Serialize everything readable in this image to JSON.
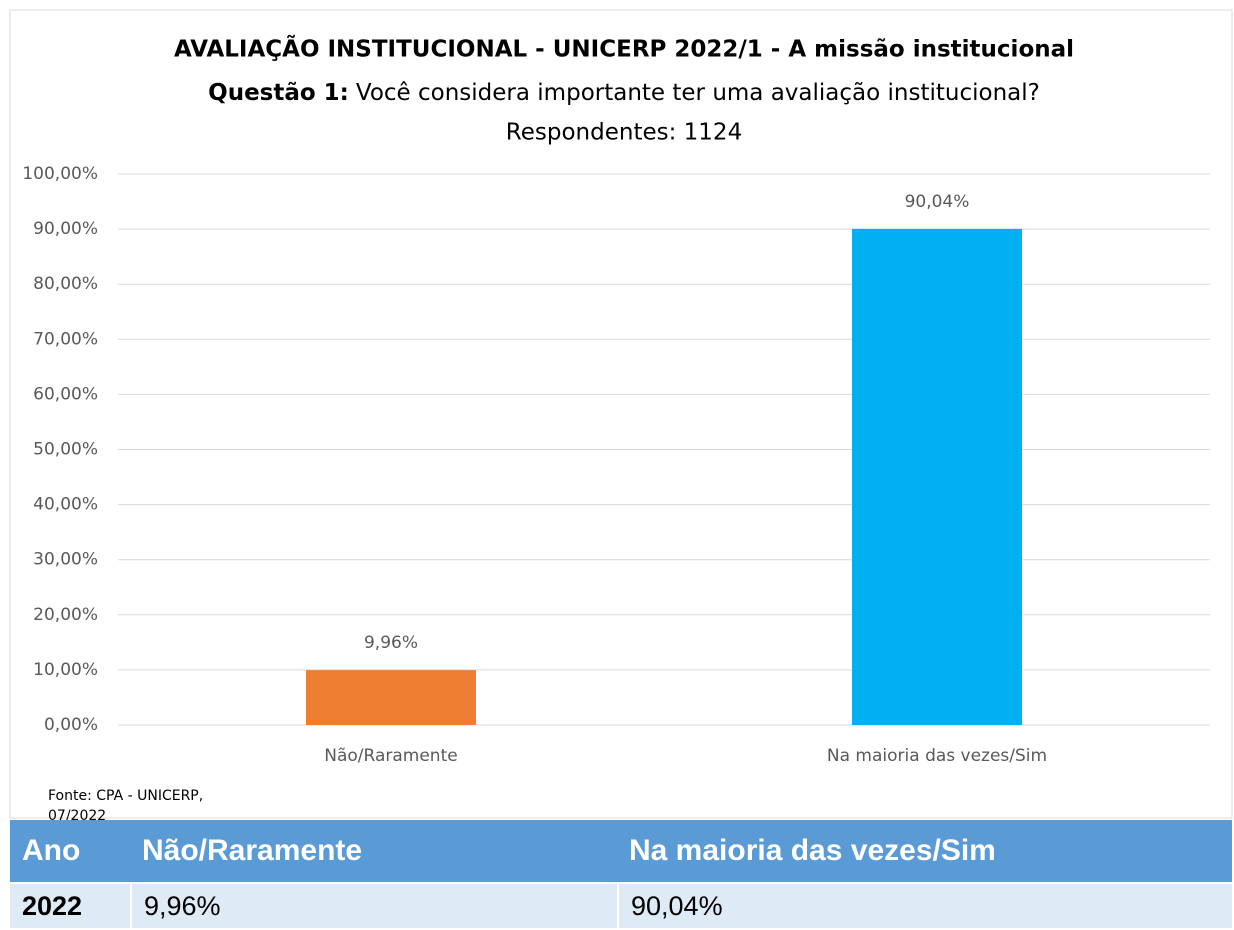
{
  "chart_data": {
    "type": "bar",
    "title": "AVALIAÇÃO INSTITUCIONAL - UNICERP 2022/1 - A missão institucional",
    "question_label": "Questão 1:",
    "subtitle": "Você considera importante ter uma avaliação institucional?",
    "respondents": "Respondentes: 1124",
    "categories": [
      "Não/Raramente",
      "Na maioria das vezes/Sim"
    ],
    "values": [
      9.96,
      90.04
    ],
    "value_labels": [
      "9,96%",
      "90,04%"
    ],
    "colors": [
      "#ed7d31",
      "#00b0f0"
    ],
    "ylim": [
      0,
      100
    ],
    "yticks": [
      {
        "value": 0,
        "label": "0,00%"
      },
      {
        "value": 10,
        "label": "10,00%"
      },
      {
        "value": 20,
        "label": "20,00%"
      },
      {
        "value": 30,
        "label": "30,00%"
      },
      {
        "value": 40,
        "label": "40,00%"
      },
      {
        "value": 50,
        "label": "50,00%"
      },
      {
        "value": 60,
        "label": "60,00%"
      },
      {
        "value": 70,
        "label": "70,00%"
      },
      {
        "value": 80,
        "label": "80,00%"
      },
      {
        "value": 90,
        "label": "90,00%"
      },
      {
        "value": 100,
        "label": "100,00%"
      }
    ],
    "grid": true,
    "source": "Fonte: CPA - UNICERP,",
    "source_date": "07/2022"
  },
  "table": {
    "header": [
      "Ano",
      "Não/Raramente",
      "Na maioria das vezes/Sim"
    ],
    "rows": [
      [
        "2022",
        "9,96%",
        "90,04%"
      ]
    ]
  }
}
